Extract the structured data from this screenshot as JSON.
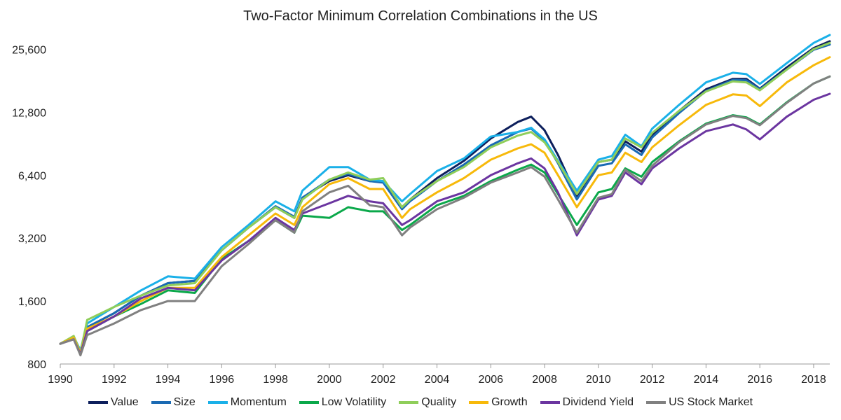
{
  "chart_data": {
    "type": "line",
    "title": "Two-Factor Minimum Correlation Combinations in the US",
    "xlabel": "",
    "ylabel": "",
    "y_scale": "log2",
    "ylim": [
      800,
      30000
    ],
    "xlim": [
      1990,
      2018.6
    ],
    "y_ticks": [
      800,
      1600,
      3200,
      6400,
      12800,
      25600
    ],
    "y_tick_labels": [
      "800",
      "1,600",
      "3,200",
      "6,400",
      "12,800",
      "25,600"
    ],
    "x_ticks": [
      1990,
      1992,
      1994,
      1996,
      1998,
      2000,
      2002,
      2004,
      2006,
      2008,
      2010,
      2012,
      2014,
      2016,
      2018
    ],
    "x_tick_labels": [
      "1990",
      "1992",
      "1994",
      "1996",
      "1998",
      "2000",
      "2002",
      "2004",
      "2006",
      "2008",
      "2010",
      "2012",
      "2014",
      "2016",
      "2018"
    ],
    "grid": false,
    "legend_position": "bottom",
    "x": [
      1990,
      1990.5,
      1990.75,
      1991,
      1992,
      1993,
      1994,
      1995,
      1996,
      1997,
      1998,
      1998.7,
      1999,
      2000,
      2000.7,
      2001.5,
      2002,
      2002.7,
      2003,
      2004,
      2005,
      2006,
      2007,
      2007.5,
      2008,
      2008.5,
      2009.2,
      2010,
      2010.5,
      2011,
      2011.6,
      2012,
      2013,
      2014,
      2015,
      2015.5,
      2016,
      2017,
      2018,
      2018.6
    ],
    "series": [
      {
        "name": "Value",
        "color": "#0d1f5c",
        "values": [
          1000,
          1070,
          920,
          1200,
          1400,
          1700,
          1950,
          2000,
          2800,
          3600,
          4500,
          4000,
          5000,
          6000,
          6400,
          6000,
          6000,
          4500,
          4900,
          6200,
          7500,
          9600,
          11500,
          12200,
          10500,
          8000,
          5100,
          7400,
          7600,
          9300,
          8300,
          10000,
          13000,
          16500,
          18500,
          18500,
          16600,
          21000,
          26000,
          28000
        ]
      },
      {
        "name": "Size",
        "color": "#1a6ab3",
        "values": [
          1000,
          1070,
          920,
          1200,
          1400,
          1700,
          1950,
          2000,
          2800,
          3600,
          4550,
          4050,
          5000,
          6100,
          6500,
          6000,
          5900,
          4400,
          4800,
          6000,
          7200,
          8900,
          10300,
          10700,
          9400,
          7300,
          4900,
          7100,
          7300,
          9000,
          8000,
          9700,
          12700,
          16200,
          18300,
          18200,
          16500,
          20500,
          25500,
          27000
        ]
      },
      {
        "name": "Momentum",
        "color": "#1ab0e8",
        "values": [
          1000,
          1080,
          930,
          1250,
          1500,
          1800,
          2100,
          2050,
          2900,
          3700,
          4800,
          4300,
          5400,
          7000,
          7000,
          6100,
          6000,
          4800,
          5200,
          6700,
          7700,
          9800,
          10300,
          10800,
          9500,
          7500,
          5400,
          7600,
          7900,
          10000,
          8800,
          10700,
          13900,
          17800,
          19800,
          19500,
          17500,
          22000,
          27500,
          30000
        ]
      },
      {
        "name": "Low Volatility",
        "color": "#0aa84a",
        "values": [
          1000,
          1060,
          900,
          1150,
          1350,
          1550,
          1800,
          1750,
          2550,
          3100,
          3900,
          3400,
          4100,
          4000,
          4500,
          4300,
          4300,
          3500,
          3700,
          4600,
          5100,
          6000,
          6800,
          7200,
          6600,
          5200,
          3700,
          5300,
          5500,
          6900,
          6300,
          7400,
          9300,
          11300,
          12400,
          12100,
          11200,
          14300,
          17600,
          19000
        ]
      },
      {
        "name": "Quality",
        "color": "#8fce5a",
        "values": [
          1000,
          1090,
          910,
          1300,
          1500,
          1700,
          1900,
          1950,
          2800,
          3600,
          4500,
          4000,
          4900,
          6100,
          6600,
          6100,
          6200,
          4500,
          4900,
          6000,
          7000,
          8700,
          9900,
          10300,
          9200,
          7400,
          5200,
          7400,
          7600,
          9600,
          8700,
          10200,
          13000,
          16100,
          18000,
          17800,
          16300,
          20500,
          25700,
          27500
        ]
      },
      {
        "name": "Growth",
        "color": "#f7b90a",
        "values": [
          1000,
          1070,
          900,
          1180,
          1350,
          1600,
          1850,
          1850,
          2600,
          3300,
          4200,
          3700,
          4500,
          5800,
          6200,
          5500,
          5500,
          4000,
          4400,
          5300,
          6200,
          7600,
          8600,
          9000,
          8200,
          6400,
          4500,
          6400,
          6600,
          8200,
          7400,
          8700,
          11100,
          13900,
          15600,
          15400,
          13700,
          17800,
          21500,
          23500
        ]
      },
      {
        "name": "Dividend Yield",
        "color": "#6b35a0",
        "values": [
          1000,
          1050,
          890,
          1150,
          1350,
          1650,
          1850,
          1800,
          2500,
          3100,
          4000,
          3500,
          4200,
          4700,
          5100,
          4800,
          4700,
          3700,
          3900,
          4800,
          5300,
          6400,
          7300,
          7700,
          6900,
          5300,
          3300,
          4900,
          5100,
          6600,
          5800,
          6900,
          8600,
          10400,
          11200,
          10600,
          9500,
          12200,
          14700,
          15700
        ]
      },
      {
        "name": "US Stock Market",
        "color": "#808080",
        "values": [
          1000,
          1050,
          880,
          1100,
          1250,
          1450,
          1600,
          1600,
          2350,
          3000,
          3900,
          3400,
          4300,
          5300,
          5700,
          4600,
          4500,
          3300,
          3600,
          4400,
          5000,
          5900,
          6600,
          7000,
          6300,
          4900,
          3400,
          5000,
          5200,
          6800,
          6000,
          7100,
          9200,
          11200,
          12300,
          12000,
          11100,
          14200,
          17600,
          19000
        ]
      }
    ]
  }
}
